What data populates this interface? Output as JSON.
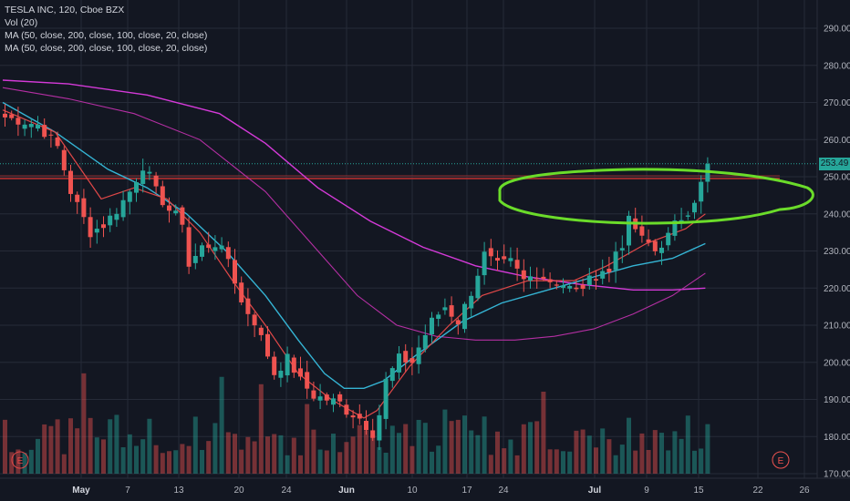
{
  "legend": {
    "line1": "TESLA INC, 120, Cboe BZX",
    "line2": "Vol (20)",
    "line3": "MA (50, close, 200, close, 100, close, 20, close)",
    "line4": "MA (50, close, 200, close, 100, close, 20, close)"
  },
  "last_price_label": "253.49",
  "event_marker_label": "E",
  "colors": {
    "background": "#131722",
    "up": "#26a69a",
    "down": "#ef5350",
    "ma20": "#e04848",
    "ma50": "#35b4d4",
    "ma100": "#b42fa3",
    "ma200": "#d43ad8",
    "annotation": "#6bdc2a",
    "resistance": "#c03030"
  },
  "chart_data": {
    "type": "candlestick",
    "y_axis": {
      "ticks": [
        "290.00",
        "280.00",
        "270.00",
        "260.00",
        "250.00",
        "240.00",
        "230.00",
        "220.00",
        "210.00",
        "200.00",
        "190.00",
        "180.00",
        "170.00"
      ],
      "ylim": [
        166,
        296
      ]
    },
    "x_axis": {
      "ticks": [
        {
          "label": "May",
          "bold": true
        },
        {
          "label": "7"
        },
        {
          "label": "13"
        },
        {
          "label": "20"
        },
        {
          "label": "24"
        },
        {
          "label": "Jun",
          "bold": true
        },
        {
          "label": "10"
        },
        {
          "label": "17"
        },
        {
          "label": "24"
        },
        {
          "label": "Jul",
          "bold": true
        },
        {
          "label": "9"
        },
        {
          "label": "15"
        },
        {
          "label": "22"
        },
        {
          "label": "26"
        }
      ]
    },
    "last_price": 253.49,
    "resistance_level": 249.5,
    "price_path": [
      [
        0,
        266
      ],
      [
        5,
        264
      ],
      [
        8,
        258
      ],
      [
        10,
        246
      ],
      [
        13,
        235
      ],
      [
        15,
        237
      ],
      [
        17,
        241
      ],
      [
        19,
        246
      ],
      [
        21,
        253
      ],
      [
        22,
        250
      ],
      [
        23,
        246
      ],
      [
        25,
        241
      ],
      [
        27,
        238
      ],
      [
        28,
        226
      ],
      [
        30,
        231
      ],
      [
        32,
        232
      ],
      [
        34,
        228
      ],
      [
        36,
        216
      ],
      [
        38,
        211
      ],
      [
        40,
        202
      ],
      [
        41,
        197
      ],
      [
        43,
        201
      ],
      [
        45,
        195
      ],
      [
        47,
        191
      ],
      [
        49,
        190
      ],
      [
        51,
        189
      ],
      [
        52,
        187
      ],
      [
        54,
        185
      ],
      [
        55,
        183
      ],
      [
        56,
        181
      ],
      [
        57,
        186
      ],
      [
        58,
        195
      ],
      [
        60,
        201
      ],
      [
        62,
        200
      ],
      [
        63,
        204
      ],
      [
        65,
        211
      ],
      [
        67,
        215
      ],
      [
        69,
        211
      ],
      [
        71,
        219
      ],
      [
        73,
        229
      ],
      [
        75,
        226
      ],
      [
        77,
        227
      ],
      [
        79,
        222
      ],
      [
        81,
        224
      ],
      [
        83,
        222
      ],
      [
        85,
        221
      ],
      [
        87,
        219
      ],
      [
        89,
        222
      ],
      [
        91,
        225
      ],
      [
        92,
        224
      ],
      [
        93,
        230
      ],
      [
        94,
        232
      ],
      [
        95,
        238
      ],
      [
        96,
        236
      ],
      [
        97,
        233
      ],
      [
        98,
        232
      ],
      [
        99,
        230
      ],
      [
        100,
        232
      ],
      [
        101,
        234
      ],
      [
        102,
        237
      ],
      [
        103,
        239
      ],
      [
        104,
        241
      ],
      [
        105,
        244
      ],
      [
        106,
        248
      ],
      [
        107,
        253.5
      ]
    ],
    "ma20": [
      [
        0,
        268
      ],
      [
        8,
        262
      ],
      [
        15,
        244
      ],
      [
        20,
        247
      ],
      [
        25,
        244
      ],
      [
        30,
        235
      ],
      [
        35,
        222
      ],
      [
        40,
        210
      ],
      [
        45,
        197
      ],
      [
        50,
        190
      ],
      [
        55,
        185
      ],
      [
        57,
        187
      ],
      [
        62,
        199
      ],
      [
        68,
        210
      ],
      [
        73,
        218
      ],
      [
        80,
        222
      ],
      [
        87,
        222
      ],
      [
        92,
        226
      ],
      [
        98,
        232
      ],
      [
        104,
        236
      ],
      [
        107,
        240
      ]
    ],
    "ma50": [
      [
        0,
        270
      ],
      [
        8,
        262
      ],
      [
        16,
        252
      ],
      [
        22,
        247
      ],
      [
        28,
        240
      ],
      [
        34,
        230
      ],
      [
        40,
        218
      ],
      [
        45,
        206
      ],
      [
        49,
        197
      ],
      [
        52,
        193
      ],
      [
        55,
        193
      ],
      [
        58,
        195
      ],
      [
        63,
        202
      ],
      [
        70,
        211
      ],
      [
        76,
        216
      ],
      [
        84,
        220
      ],
      [
        90,
        223
      ],
      [
        96,
        226
      ],
      [
        102,
        228
      ],
      [
        107,
        232
      ]
    ],
    "ma100": [
      [
        0,
        274
      ],
      [
        10,
        271
      ],
      [
        20,
        267
      ],
      [
        30,
        260
      ],
      [
        40,
        246
      ],
      [
        48,
        230
      ],
      [
        54,
        218
      ],
      [
        60,
        210
      ],
      [
        66,
        207
      ],
      [
        72,
        206
      ],
      [
        78,
        206
      ],
      [
        84,
        207
      ],
      [
        90,
        209
      ],
      [
        96,
        213
      ],
      [
        102,
        218
      ],
      [
        107,
        224
      ]
    ],
    "ma200": [
      [
        0,
        276
      ],
      [
        10,
        275
      ],
      [
        22,
        272
      ],
      [
        33,
        267
      ],
      [
        40,
        259
      ],
      [
        48,
        247
      ],
      [
        56,
        238
      ],
      [
        64,
        231
      ],
      [
        72,
        226
      ],
      [
        80,
        223
      ],
      [
        88,
        221
      ],
      [
        96,
        219.5
      ],
      [
        102,
        219.5
      ],
      [
        107,
        220
      ]
    ],
    "volume_scale_note": "Vol (20)"
  }
}
